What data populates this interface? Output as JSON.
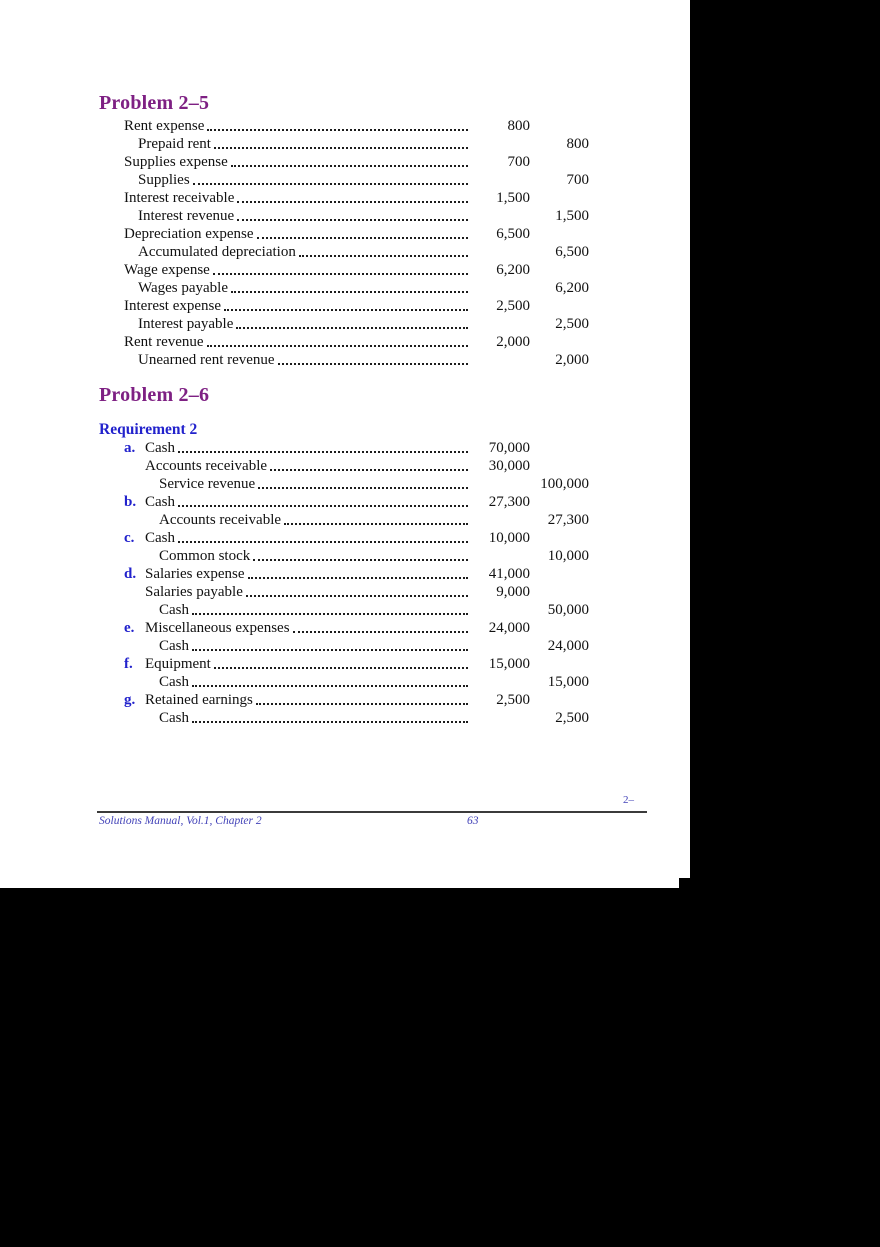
{
  "colors": {
    "heading_purple": "#7E2083",
    "subheading_blue": "#2222CC",
    "letter_blue": "#2222CC",
    "footer_blue": "#4343B8",
    "body_text": "#111111",
    "page_background": "#FFFFFF",
    "scan_background": "#000000"
  },
  "document": {
    "problem25": {
      "title": "Problem 2–5",
      "entries": [
        {
          "indent": 0,
          "label": "Rent expense",
          "debit": "800",
          "credit": ""
        },
        {
          "indent": 1,
          "label": "Prepaid rent",
          "debit": "",
          "credit": "800"
        },
        {
          "indent": 0,
          "label": "Supplies expense",
          "debit": "700",
          "credit": ""
        },
        {
          "indent": 1,
          "label": "Supplies",
          "debit": "",
          "credit": "700"
        },
        {
          "indent": 0,
          "label": "Interest receivable",
          "debit": "1,500",
          "credit": ""
        },
        {
          "indent": 1,
          "label": "Interest revenue",
          "debit": "",
          "credit": "1,500"
        },
        {
          "indent": 0,
          "label": "Depreciation expense",
          "debit": "6,500",
          "credit": ""
        },
        {
          "indent": 1,
          "label": "Accumulated depreciation",
          "debit": "",
          "credit": "6,500"
        },
        {
          "indent": 0,
          "label": "Wage expense",
          "debit": "6,200",
          "credit": ""
        },
        {
          "indent": 1,
          "label": "Wages payable",
          "debit": "",
          "credit": "6,200"
        },
        {
          "indent": 0,
          "label": "Interest expense",
          "debit": "2,500",
          "credit": ""
        },
        {
          "indent": 1,
          "label": "Interest payable",
          "debit": "",
          "credit": "2,500"
        },
        {
          "indent": 0,
          "label": "Rent revenue",
          "debit": "2,000",
          "credit": ""
        },
        {
          "indent": 1,
          "label": "Unearned rent revenue",
          "debit": "",
          "credit": "2,000"
        }
      ]
    },
    "problem26": {
      "title": "Problem 2–6",
      "requirement": "Requirement 2",
      "entries": [
        {
          "indent": 0,
          "letter": "a.",
          "label": "Cash",
          "debit": "70,000",
          "credit": ""
        },
        {
          "indent": 1,
          "letter": "",
          "label": "Accounts receivable",
          "debit": "30,000",
          "credit": ""
        },
        {
          "indent": 2,
          "letter": "",
          "label": "Service revenue",
          "debit": "",
          "credit": "100,000"
        },
        {
          "indent": 0,
          "letter": "b.",
          "label": "Cash",
          "debit": "27,300",
          "credit": ""
        },
        {
          "indent": 2,
          "letter": "",
          "label": "Accounts receivable",
          "debit": "",
          "credit": "27,300"
        },
        {
          "indent": 0,
          "letter": "c.",
          "label": "Cash",
          "debit": "10,000",
          "credit": ""
        },
        {
          "indent": 2,
          "letter": "",
          "label": "Common stock",
          "debit": "",
          "credit": "10,000"
        },
        {
          "indent": 0,
          "letter": "d.",
          "label": "Salaries expense",
          "debit": "41,000",
          "credit": ""
        },
        {
          "indent": 1,
          "letter": "",
          "label": "Salaries payable",
          "debit": "9,000",
          "credit": ""
        },
        {
          "indent": 2,
          "letter": "",
          "label": "Cash",
          "debit": "",
          "credit": "50,000"
        },
        {
          "indent": 0,
          "letter": "e.",
          "label": "Miscellaneous expenses",
          "debit": "24,000",
          "credit": ""
        },
        {
          "indent": 2,
          "letter": "",
          "label": "Cash",
          "debit": "",
          "credit": "24,000"
        },
        {
          "indent": 0,
          "letter": "f.",
          "label": "Equipment",
          "debit": "15,000",
          "credit": ""
        },
        {
          "indent": 2,
          "letter": "",
          "label": "Cash",
          "debit": "",
          "credit": "15,000"
        },
        {
          "indent": 0,
          "letter": "g.",
          "label": "Retained earnings",
          "debit": "2,500",
          "credit": ""
        },
        {
          "indent": 2,
          "letter": "",
          "label": "Cash",
          "debit": "",
          "credit": "2,500"
        }
      ]
    },
    "footer": {
      "page_header_right": "2–",
      "left": "Solutions Manual, Vol.1, Chapter 2",
      "page_number": "63"
    }
  }
}
